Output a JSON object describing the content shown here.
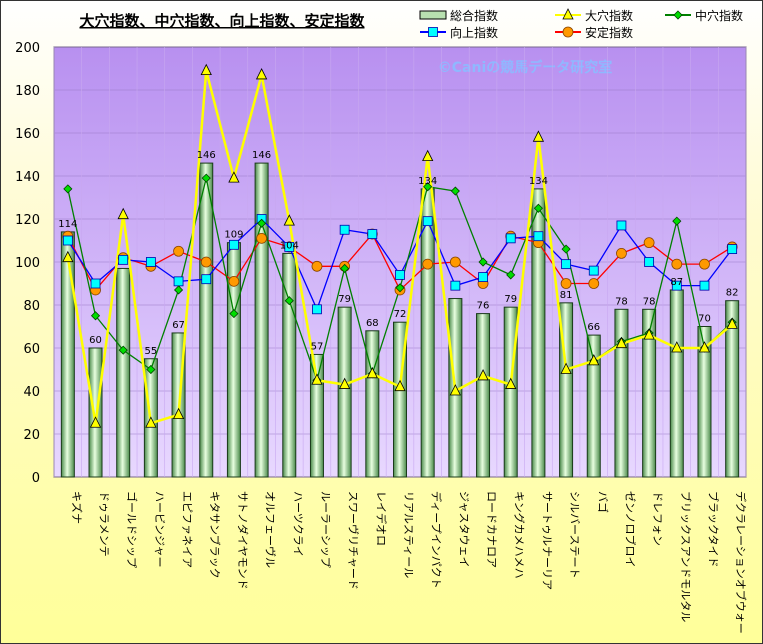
{
  "chart_data": {
    "type": "bar+line",
    "title": "大穴指数、中穴指数、向上指数、安定指数",
    "watermark": "©Caniの競馬データ研究室",
    "ylim": [
      0,
      200
    ],
    "yticks": [
      0,
      20,
      40,
      60,
      80,
      100,
      120,
      140,
      160,
      180,
      200
    ],
    "grid": true,
    "legend_position": "top-right",
    "categories": [
      "キズナ",
      "ドゥラメンテ",
      "ゴールドシップ",
      "ハービンジャー",
      "エピファネイア",
      "キタサンブラック",
      "サトノダイヤモンド",
      "オルフェーヴル",
      "ハーツクライ",
      "ルーラーシップ",
      "スワーヴリチャード",
      "レイデオロ",
      "リアルスティール",
      "ディープインパクト",
      "ジャスタウェイ",
      "ロードカナロア",
      "キングカメハメハ",
      "サートゥルナーリア",
      "シルバーステート",
      "バゴ",
      "ゼンノロブロイ",
      "ドレフォン",
      "ブリックスアンドモルタル",
      "ブラックタイド",
      "デクラレーションオブウォー"
    ],
    "series": [
      {
        "name": "総合指数",
        "type": "bar",
        "color": "#b8e0b0",
        "values": [
          114,
          60,
          97,
          55,
          67,
          146,
          109,
          146,
          104,
          57,
          79,
          68,
          72,
          134,
          83,
          76,
          79,
          134,
          81,
          66,
          78,
          78,
          87,
          70,
          82
        ],
        "label_hidden": [
          2,
          14
        ]
      },
      {
        "name": "大穴指数",
        "type": "line",
        "color": "#ffff00",
        "marker": "triangle",
        "values": [
          102,
          25,
          122,
          25,
          29,
          189,
          139,
          187,
          119,
          45,
          43,
          48,
          42,
          149,
          40,
          47,
          43,
          158,
          50,
          54,
          62,
          66,
          60,
          60,
          71
        ]
      },
      {
        "name": "中穴指数",
        "type": "line",
        "color": "#008000",
        "marker": "diamond",
        "values": [
          134,
          75,
          59,
          50,
          87,
          139,
          76,
          118,
          82,
          45,
          97,
          48,
          88,
          135,
          133,
          100,
          94,
          125,
          106,
          54,
          63,
          67,
          119,
          60,
          72
        ]
      },
      {
        "name": "向上指数",
        "type": "line",
        "color": "#0000ff",
        "marker": "square",
        "values": [
          110,
          90,
          101,
          100,
          91,
          92,
          108,
          120,
          107,
          78,
          115,
          113,
          94,
          119,
          89,
          93,
          111,
          112,
          99,
          96,
          117,
          100,
          89,
          89,
          106
        ]
      },
      {
        "name": "安定指数",
        "type": "line",
        "color": "#ff0000",
        "marker": "circle",
        "values": [
          112,
          87,
          102,
          98,
          105,
          100,
          91,
          111,
          107,
          98,
          98,
          113,
          87,
          99,
          100,
          90,
          112,
          109,
          90,
          90,
          104,
          109,
          99,
          99,
          107
        ]
      }
    ]
  }
}
